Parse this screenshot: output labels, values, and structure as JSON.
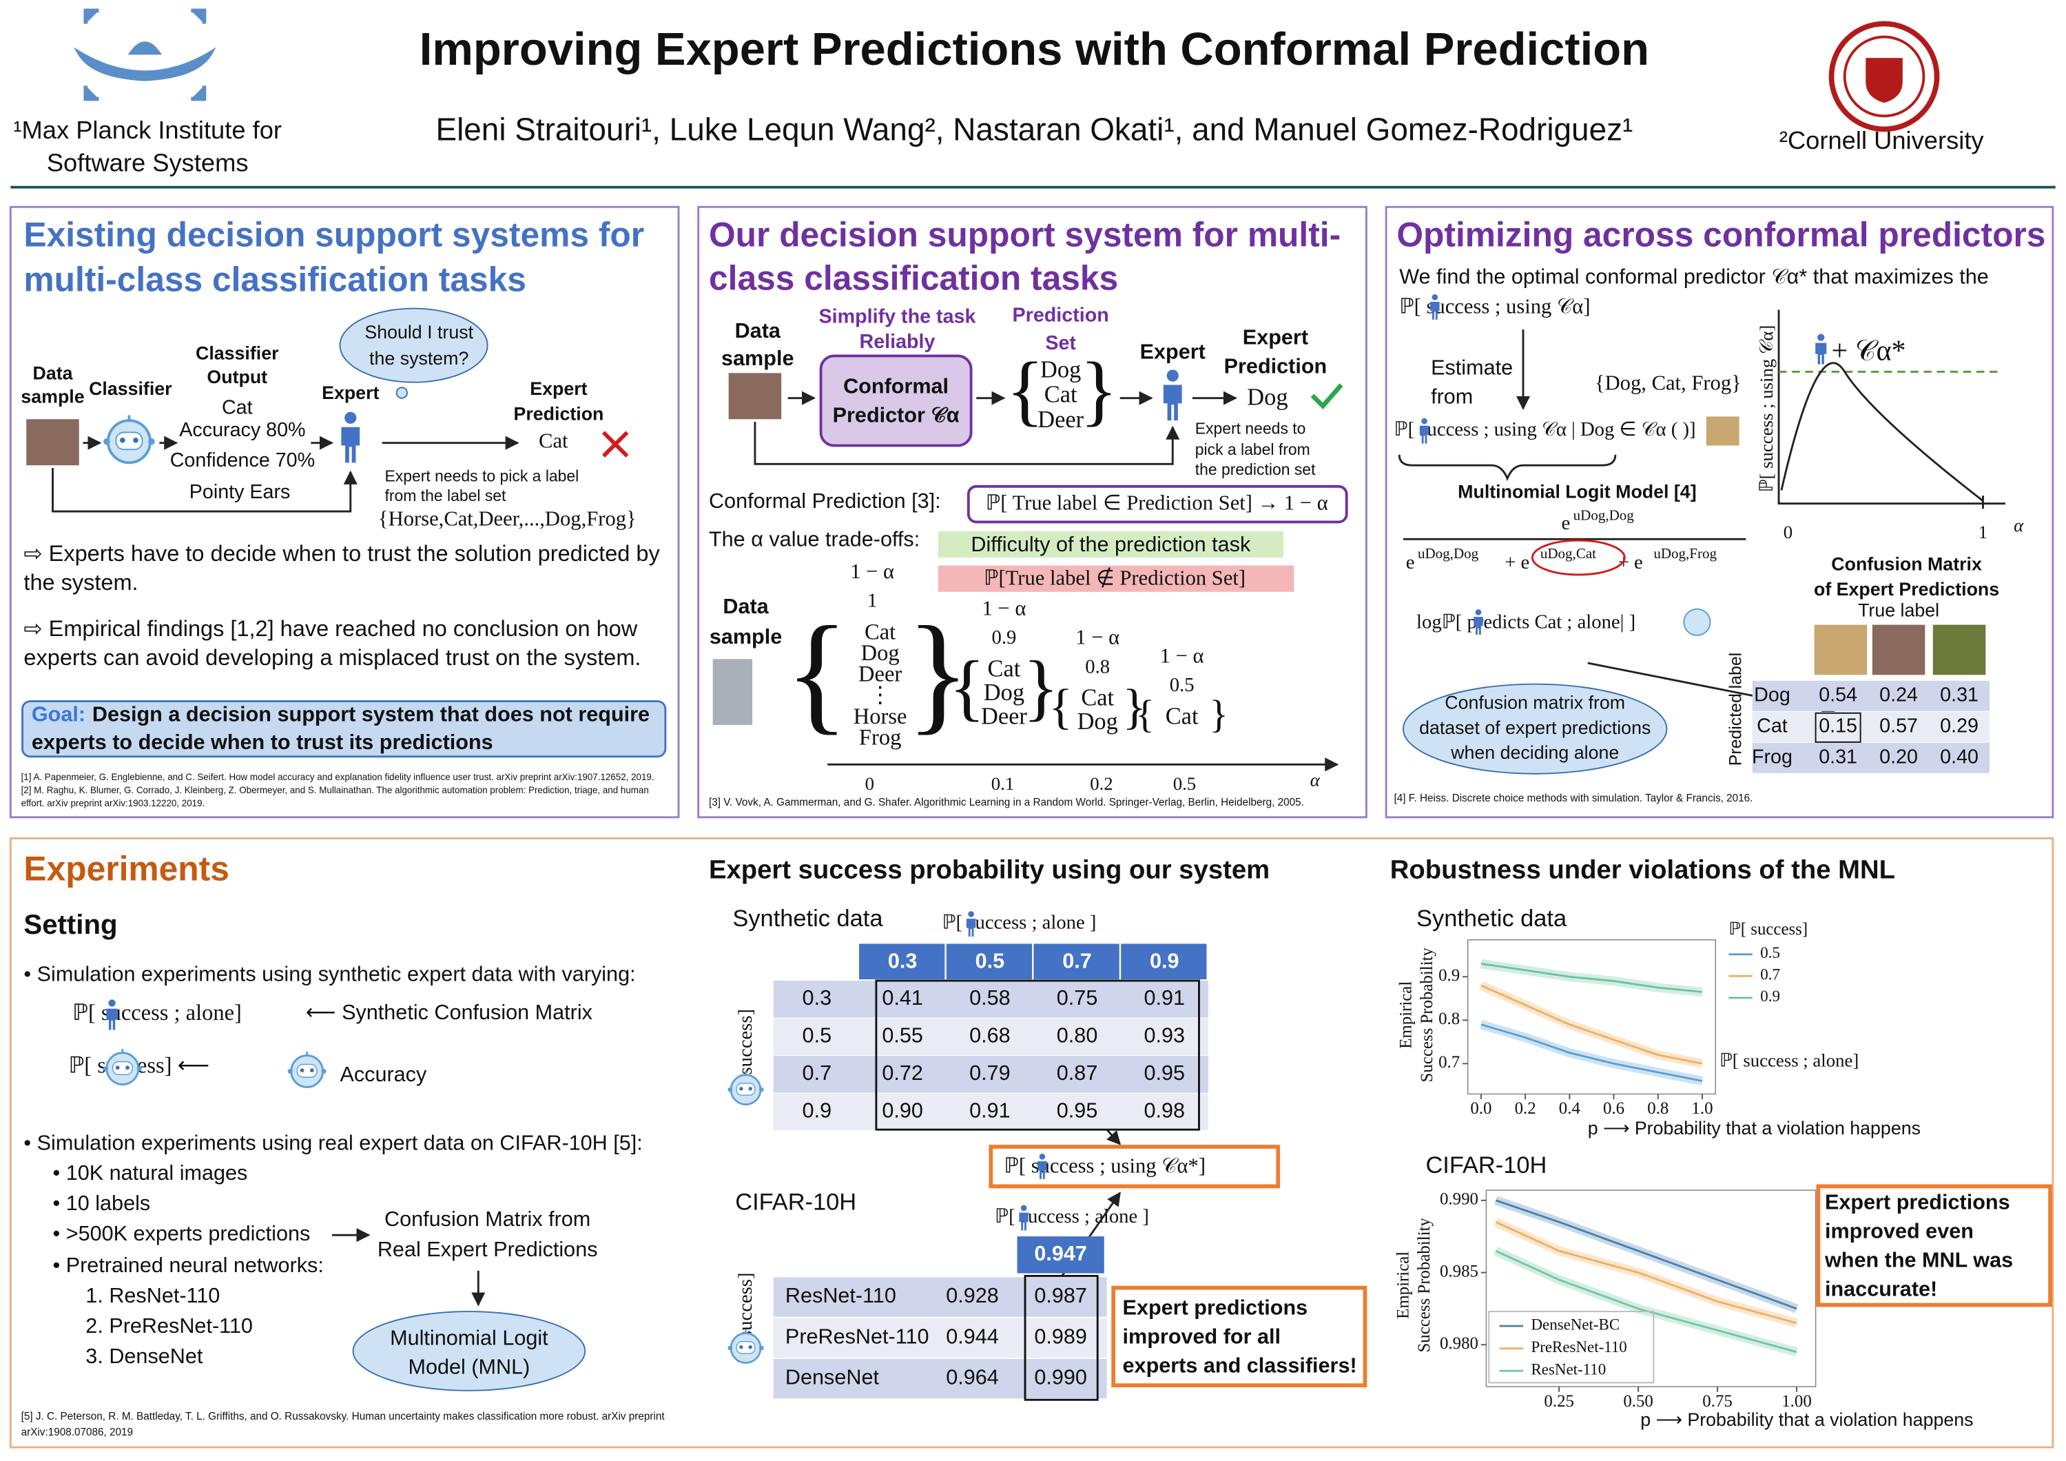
{
  "header": {
    "title": "Improving Expert Predictions with Conformal Prediction",
    "authors": "Eleni Straitouri¹, Luke Lequn Wang², Nastaran Okati¹, and Manuel Gomez-Rodriguez¹",
    "affiliation_left": [
      "¹Max Planck Institute for",
      "Software Systems"
    ],
    "affiliation_right": "²Cornell University"
  },
  "panel_existing": {
    "title": [
      "Existing decision support systems for",
      "multi-class classification tasks"
    ],
    "data_sample": [
      "Data",
      "sample"
    ],
    "classifier": "Classifier",
    "classifier_output": [
      "Classifier",
      "Output"
    ],
    "output_values": [
      "Cat",
      "Accuracy 80%",
      "Confidence 70%",
      "Pointy Ears"
    ],
    "expert": "Expert",
    "thought": [
      "Should I trust",
      "the system?"
    ],
    "expert_prediction": [
      "Expert",
      "Prediction"
    ],
    "prediction": "Cat",
    "note": [
      "Expert needs to pick a label",
      "from the label set"
    ],
    "label_set": "{Horse,Cat,Deer,...,Dog,Frog}",
    "points": [
      [
        "⇨ Experts have to decide when to trust the solution predicted by",
        "the system."
      ],
      [
        "⇨ Empirical findings [1,2] have reached no conclusion on how",
        "experts can avoid developing a misplaced trust on the system."
      ]
    ],
    "goal": {
      "label": "Goal:",
      "lines": [
        "Design a decision support system that does not require",
        "experts to decide when to trust its predictions"
      ]
    },
    "references": [
      "[1] A. Papenmeier, G. Englebienne, and C. Seifert. How model accuracy and explanation fidelity influence user trust. arXiv preprint arXiv:1907.12652, 2019.",
      "[2] M. Raghu, K. Blumer, G. Corrado, J. Kleinberg, Z. Obermeyer, and S. Mullainathan. The algorithmic automation problem: Prediction, triage, and human",
      "effort. arXiv preprint arXiv:1903.12220, 2019."
    ]
  },
  "panel_ours": {
    "title": [
      "Our decision support system for multi-",
      "class classification tasks"
    ],
    "data_sample": [
      "Data",
      "sample"
    ],
    "simplify": [
      "Simplify the task",
      "Reliably"
    ],
    "predictor": [
      "Conformal",
      "Predictor 𝒞α"
    ],
    "prediction_set_label": [
      "Prediction",
      "Set"
    ],
    "prediction_set": [
      "Dog",
      "Cat",
      "Deer"
    ],
    "expert": "Expert",
    "expert_prediction": [
      "Expert",
      "Prediction"
    ],
    "prediction": "Dog",
    "note": [
      "Expert needs to",
      "pick a label from",
      "the prediction set"
    ],
    "conformal_label": "Conformal Prediction [3]:",
    "conformal_formula": "ℙ[ True label ∈ Prediction Set] → 1 − α",
    "tradeoff_label": "The α value trade-offs:",
    "tradeoffs": [
      "Difficulty of the prediction task",
      "ℙ[True label ∉ Prediction Set]"
    ],
    "data_sample_2": [
      "Data",
      "sample"
    ],
    "sets": [
      {
        "coverage": "1 − α",
        "value": "1",
        "labels": [
          "Cat",
          "Dog",
          "Deer",
          "⋮",
          "Horse",
          "Frog"
        ]
      },
      {
        "coverage": "1 − α",
        "value": "0.9",
        "labels": [
          "Cat",
          "Dog",
          "Deer"
        ]
      },
      {
        "coverage": "1 − α",
        "value": "0.8",
        "labels": [
          "Cat",
          "Dog"
        ]
      },
      {
        "coverage": "1 − α",
        "value": "0.5",
        "labels": [
          "Cat"
        ]
      }
    ],
    "axis_ticks": [
      "0",
      "0.1",
      "0.2",
      "0.5"
    ],
    "axis_label": "α",
    "reference": "[3] V. Vovk, A. Gammerman, and G. Shafer. Algorithmic Learning in a Random World. Springer-Verlag, Berlin, Heidelberg, 2005."
  },
  "panel_optimizing": {
    "title": "Optimizing across conformal predictors",
    "intro": [
      "We find the optimal conformal predictor 𝒞α* that maximizes the",
      "ℙ[     success ; using 𝒞α]"
    ],
    "estimate": [
      "Estimate",
      "from"
    ],
    "label_set": "{Dog, Cat, Frog}",
    "conditional": "ℙ[     success ; using 𝒞α | Dog ∈ 𝒞α (        )]",
    "mnl_title": "Multinomial Logit Model [4]",
    "numerator": [
      "e",
      "uDog,Dog"
    ],
    "denominator": [
      "e",
      "uDog,Dog",
      "+ e",
      "uDog,Cat",
      "+ e",
      "uDog,Frog"
    ],
    "log_prob": "logℙ[      predicts Cat ; alone|        ]",
    "cloud": [
      "Confusion matrix from",
      "dataset of expert predictions",
      "when deciding alone"
    ],
    "plot_ylabel": "ℙ[ success ; using 𝒞α]",
    "plot_marker": "+ 𝒞α*",
    "plot_ticks": [
      "0",
      "1"
    ],
    "plot_xlabel": "α",
    "confusion": {
      "title": [
        "Confusion Matrix",
        "of Expert Predictions"
      ],
      "true_label": "True label",
      "predicted_label": "Predicted label",
      "rows": [
        {
          "label": "Dog",
          "values": [
            "0.54",
            "0.24",
            "0.31"
          ]
        },
        {
          "label": "Cat",
          "values": [
            "0.15",
            "0.57",
            "0.29"
          ]
        },
        {
          "label": "Frog",
          "values": [
            "0.31",
            "0.20",
            "0.40"
          ]
        }
      ]
    },
    "reference": "[4] F. Heiss. Discrete choice methods with simulation. Taylor & Francis, 2016."
  },
  "experiments": {
    "title": "Experiments",
    "setting": "Setting",
    "bullet_1": "• Simulation experiments using synthetic expert data with varying:",
    "expert_alone": "ℙ[    success ; alone]",
    "synthetic_cm": "⟵ Synthetic Confusion Matrix",
    "classifier_success": "ℙ[          success] ⟵",
    "accuracy": "Accuracy",
    "bullet_2": "• Simulation experiments using real expert data on CIFAR-10H [5]:",
    "sub_bullets": [
      "• 10K natural images",
      "• 10 labels",
      "• >500K experts predictions",
      "• Pretrained neural networks:"
    ],
    "networks": [
      "1.    ResNet-110",
      "2.    PreResNet-110",
      "3.    DenseNet"
    ],
    "cm_real": [
      "Confusion Matrix from",
      "Real Expert Predictions"
    ],
    "mnl": [
      "Multinomial Logit",
      "Model (MNL)"
    ],
    "reference": [
      "[5] J. C. Peterson, R. M. Battleday, T. L. Griffiths, and O. Russakovsky. Human uncertainty makes classification more robust. arXiv preprint",
      "arXiv:1908.07086, 2019"
    ]
  },
  "success": {
    "title": "Expert success probability using our system",
    "synthetic_title": "Synthetic data",
    "synthetic_table": {
      "column_label": "ℙ[    success ; alone ]",
      "columns": [
        "0.3",
        "0.5",
        "0.7",
        "0.9"
      ],
      "row_label": "ℙ[        success]",
      "rows": [
        {
          "label": "0.3",
          "values": [
            "0.41",
            "0.58",
            "0.75",
            "0.91"
          ]
        },
        {
          "label": "0.5",
          "values": [
            "0.55",
            "0.68",
            "0.80",
            "0.93"
          ]
        },
        {
          "label": "0.7",
          "values": [
            "0.72",
            "0.79",
            "0.87",
            "0.95"
          ]
        },
        {
          "label": "0.9",
          "values": [
            "0.90",
            "0.91",
            "0.95",
            "0.98"
          ]
        }
      ]
    },
    "using_label": "ℙ[    success ; using 𝒞α*]",
    "cifar_title": "CIFAR-10H",
    "cifar_table": {
      "column_label": "ℙ[    success ; alone ]",
      "column": "0.947",
      "row_label": "ℙ[        success]",
      "rows": [
        {
          "label": "ResNet-110",
          "alone": "0.928",
          "ours": "0.987"
        },
        {
          "label": "PreResNet-110",
          "alone": "0.944",
          "ours": "0.989"
        },
        {
          "label": "DenseNet",
          "alone": "0.964",
          "ours": "0.990"
        }
      ]
    },
    "callout": [
      "Expert predictions",
      "improved for all",
      "experts and classifiers!"
    ]
  },
  "robustness": {
    "title": "Robustness under violations of the MNL",
    "callout": [
      "Expert predictions",
      "improved even",
      "when the MNL was",
      "inaccurate!"
    ]
  },
  "chart_data": [
    {
      "type": "line",
      "title": "Synthetic data",
      "ylabel": [
        "Empirical",
        "Success Probability"
      ],
      "xlabel": "p ⟶ Probability that a violation happens",
      "legend_title": "ℙ[      success]",
      "annotation": "ℙ[    success ; alone]",
      "x": [
        0,
        0.2,
        0.4,
        0.6,
        0.8,
        1.0
      ],
      "xlim": [
        -0.06,
        1.06
      ],
      "ylim": [
        0.63,
        0.985
      ],
      "xticks": [
        {
          "value": 0,
          "label": "0.0"
        },
        0.2,
        0.4,
        0.6,
        0.8,
        {
          "value": 1,
          "label": "1.0"
        }
      ],
      "yticks": [
        0.7,
        0.8,
        0.9
      ],
      "series": [
        {
          "name": "0.5",
          "color": "#5a9fd4",
          "values": [
            0.79,
            0.76,
            0.725,
            0.7,
            0.68,
            0.66
          ]
        },
        {
          "name": "0.7",
          "color": "#f0b060",
          "values": [
            0.88,
            0.835,
            0.79,
            0.755,
            0.72,
            0.7
          ]
        },
        {
          "name": "0.9",
          "color": "#6cc4a0",
          "values": [
            0.93,
            0.915,
            0.9,
            0.89,
            0.875,
            0.865
          ]
        }
      ]
    },
    {
      "type": "line",
      "title": "CIFAR-10H",
      "ylabel": [
        "Empirical",
        "Success Probability"
      ],
      "xlabel": "p ⟶ Probability that a violation happens",
      "x": [
        0.05,
        0.25,
        0.5,
        0.75,
        1.0
      ],
      "xlim": [
        0.02,
        1.06
      ],
      "ylim": [
        0.9771,
        0.9907
      ],
      "xticks": [
        {
          "value": 0.25,
          "label": "0.25"
        },
        {
          "value": 0.5,
          "label": "0.50"
        },
        {
          "value": 0.75,
          "label": "0.75"
        },
        {
          "value": 1,
          "label": "1.00"
        }
      ],
      "yticks": [
        {
          "value": 0.98,
          "label": "0.980"
        },
        {
          "value": 0.985,
          "label": "0.985"
        },
        {
          "value": 0.99,
          "label": "0.990"
        }
      ],
      "series": [
        {
          "name": "DenseNet-BC",
          "color": "#4a80b0",
          "values": [
            0.99,
            0.9885,
            0.9865,
            0.9845,
            0.9825
          ]
        },
        {
          "name": "PreResNet-110",
          "color": "#f0b060",
          "values": [
            0.9885,
            0.9865,
            0.985,
            0.983,
            0.9815
          ]
        },
        {
          "name": "ResNet-110",
          "color": "#70c8a0",
          "values": [
            0.9865,
            0.9845,
            0.9825,
            0.981,
            0.9795
          ]
        }
      ]
    }
  ]
}
